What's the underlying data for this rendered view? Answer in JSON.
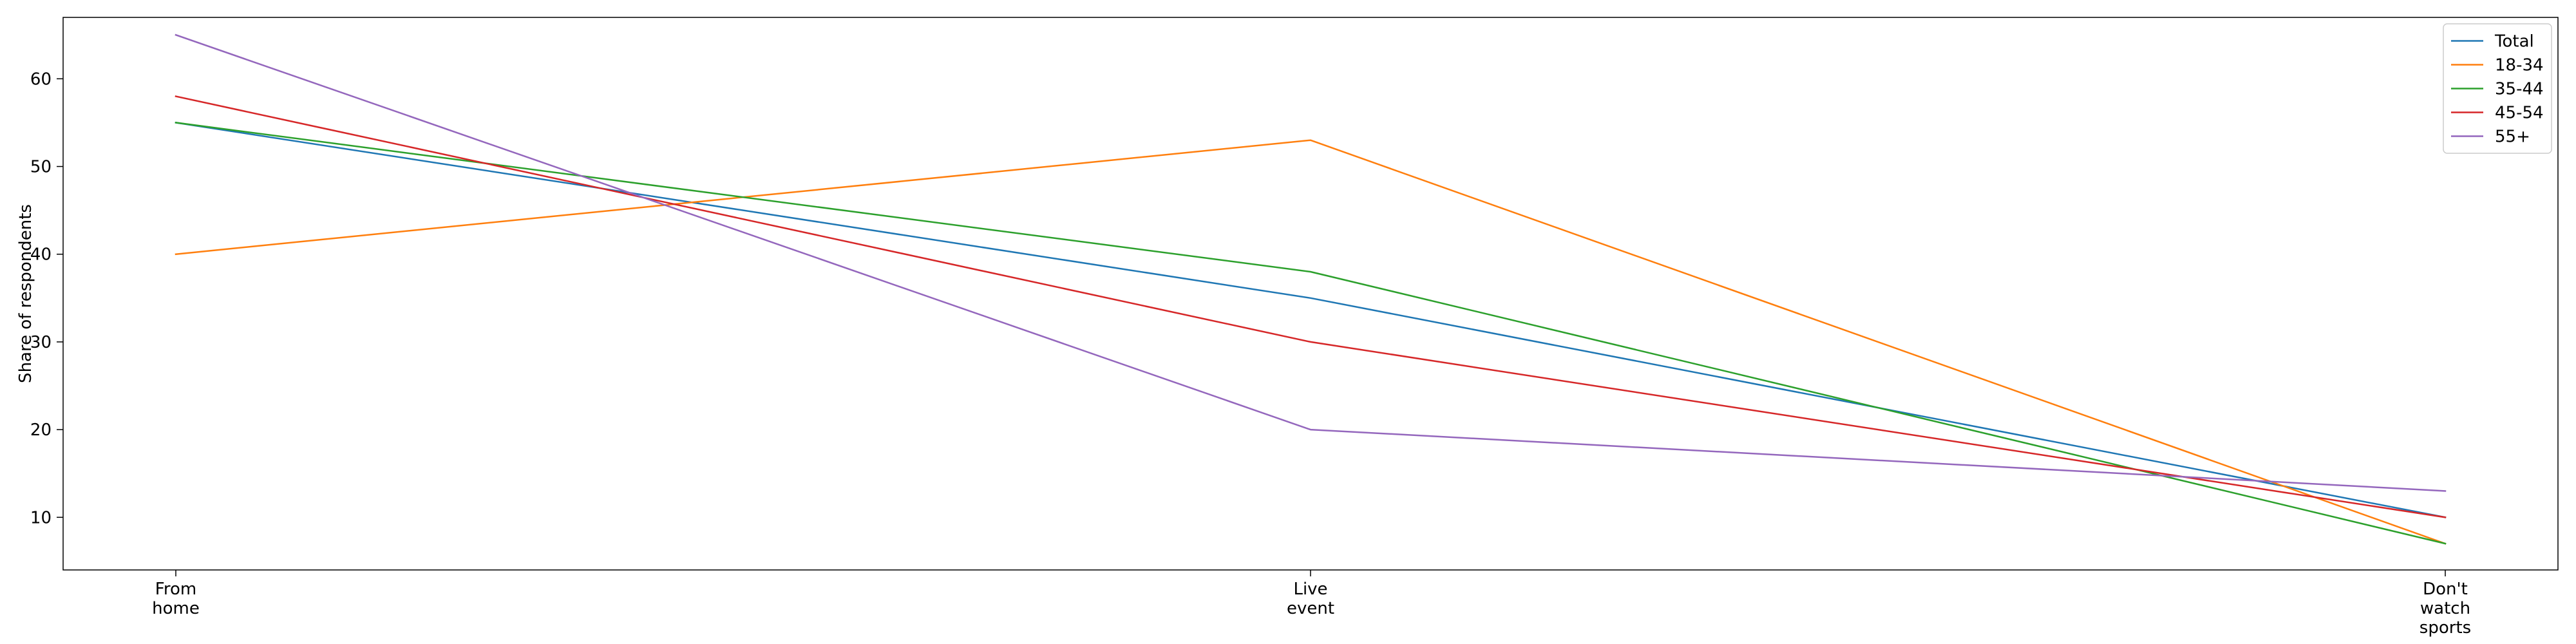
{
  "chart_data": {
    "type": "line",
    "title": "",
    "xlabel": "",
    "ylabel": "Share of respondents",
    "categories": [
      [
        "From",
        "home"
      ],
      [
        "Live",
        "event"
      ],
      [
        "Don't",
        "watch",
        "sports"
      ]
    ],
    "ylim": [
      4,
      67
    ],
    "yticks": [
      10,
      20,
      30,
      40,
      50,
      60
    ],
    "grid": false,
    "legend_position": "top-right",
    "series": [
      {
        "name": "Total",
        "color": "#1f77b4",
        "values": [
          55,
          35,
          10
        ]
      },
      {
        "name": "18-34",
        "color": "#ff7f0e",
        "values": [
          40,
          53,
          7
        ]
      },
      {
        "name": "35-44",
        "color": "#2ca02c",
        "values": [
          55,
          38,
          7
        ]
      },
      {
        "name": "45-54",
        "color": "#d62728",
        "values": [
          58,
          30,
          10
        ]
      },
      {
        "name": "55+",
        "color": "#9467bd",
        "values": [
          65,
          20,
          13
        ]
      }
    ]
  }
}
